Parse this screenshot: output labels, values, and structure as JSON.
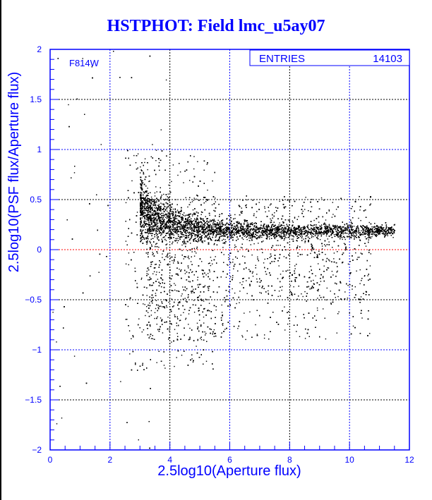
{
  "title": "HSTPHOT: Field lmc_u5ay07",
  "chart_data": {
    "type": "scatter",
    "xlabel": "2.5log10(Aperture flux)",
    "ylabel": "2.5log10(PSF flux/Aperture flux)",
    "xlim": [
      0,
      12
    ],
    "ylim": [
      -2,
      2
    ],
    "xticks": [
      "0",
      "2",
      "4",
      "6",
      "8",
      "10",
      "12"
    ],
    "yticks": [
      "-2",
      "-1.5",
      "-1",
      "-0.5",
      "0",
      "0.5",
      "1",
      "1.5",
      "2"
    ],
    "grid": true,
    "filter_label": "F814W",
    "stats": {
      "label": "ENTRIES",
      "value": "14103"
    },
    "reference_line_y": 0,
    "colors": {
      "axes": "#0000ff",
      "points": "#000000",
      "reference_line": "#ff0000"
    }
  }
}
